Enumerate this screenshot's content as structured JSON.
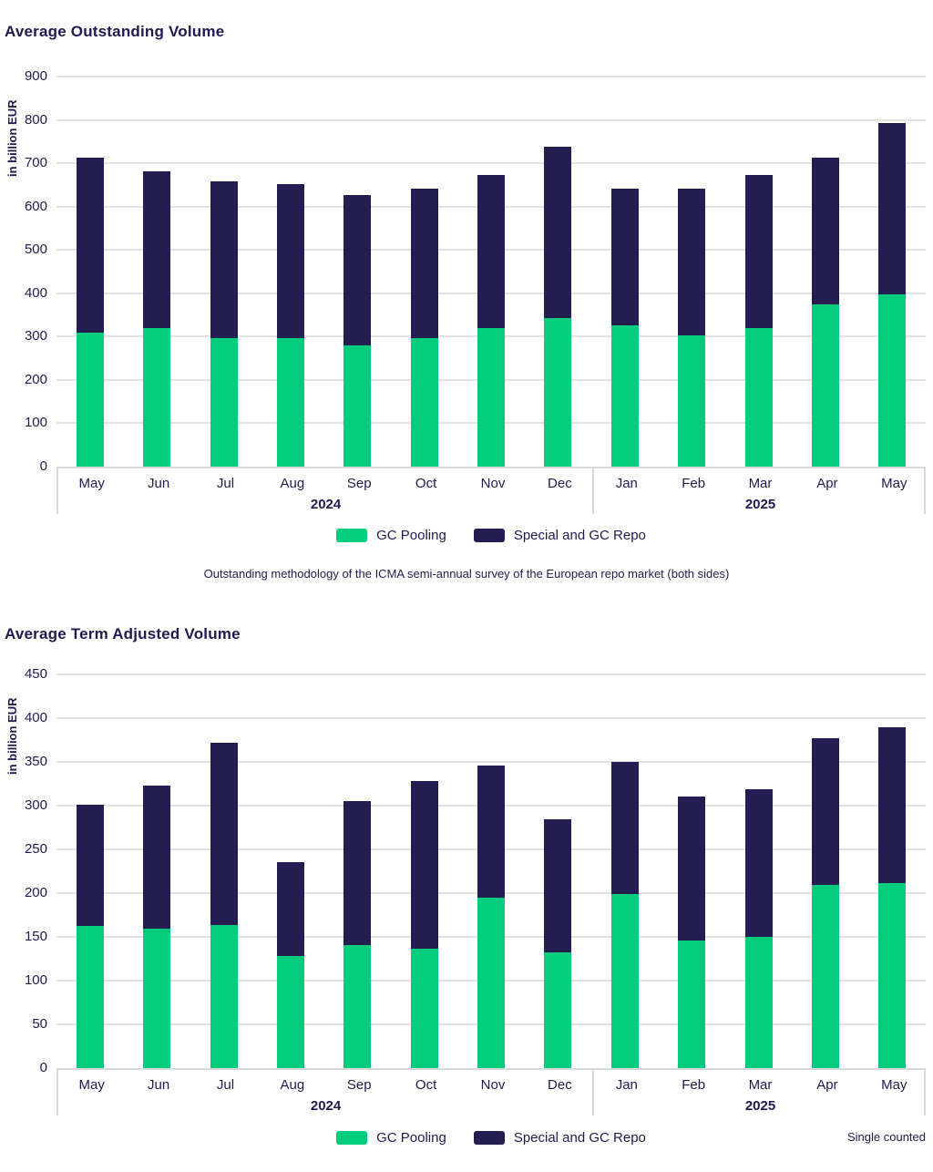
{
  "colors": {
    "gc_pooling": "#03cd7c",
    "special_gc_repo": "#231d52",
    "text": "#201a51",
    "gridline": "#e3e3e3",
    "axis_border": "#d9d9d9"
  },
  "chart_data": [
    {
      "type": "bar",
      "stacked": true,
      "title": "Average Outstanding Volume",
      "ylabel": "in billion EUR",
      "ylim": [
        0,
        900
      ],
      "ytick_step": 100,
      "grid": true,
      "legend_position": "bottom",
      "categories": [
        "May",
        "Jun",
        "Jul",
        "Aug",
        "Sep",
        "Oct",
        "Nov",
        "Dec",
        "Jan",
        "Feb",
        "Mar",
        "Apr",
        "May"
      ],
      "year_groups": [
        {
          "label": "2024",
          "span": 8
        },
        {
          "label": "2025",
          "span": 5
        }
      ],
      "series": [
        {
          "name": "GC Pooling",
          "color": "#03cd7c",
          "values": [
            310,
            320,
            296,
            296,
            280,
            296,
            319,
            342,
            327,
            303,
            319,
            374,
            398
          ]
        },
        {
          "name": "Special and GC Repo",
          "color": "#231d52",
          "values": [
            403,
            362,
            362,
            355,
            347,
            346,
            355,
            396,
            315,
            339,
            355,
            339,
            395
          ]
        }
      ],
      "totals": [
        713,
        682,
        658,
        651,
        627,
        642,
        674,
        738,
        642,
        642,
        674,
        713,
        793
      ],
      "caption": "Outstanding methodology of the ICMA semi-annual survey of the European repo market (both sides)"
    },
    {
      "type": "bar",
      "stacked": true,
      "title": "Average Term Adjusted Volume",
      "ylabel": "in billion EUR",
      "ylim": [
        0,
        450
      ],
      "ytick_step": 50,
      "grid": true,
      "legend_position": "bottom",
      "categories": [
        "May",
        "Jun",
        "Jul",
        "Aug",
        "Sep",
        "Oct",
        "Nov",
        "Dec",
        "Jan",
        "Feb",
        "Mar",
        "Apr",
        "May"
      ],
      "year_groups": [
        {
          "label": "2024",
          "span": 8
        },
        {
          "label": "2025",
          "span": 5
        }
      ],
      "series": [
        {
          "name": "GC Pooling",
          "color": "#03cd7c",
          "values": [
            163,
            159,
            164,
            128,
            141,
            137,
            195,
            132,
            199,
            146,
            150,
            209,
            212
          ]
        },
        {
          "name": "Special and GC Repo",
          "color": "#231d52",
          "values": [
            138,
            164,
            208,
            107,
            164,
            191,
            151,
            152,
            151,
            164,
            169,
            168,
            178
          ]
        }
      ],
      "totals": [
        301,
        323,
        372,
        235,
        305,
        328,
        346,
        284,
        350,
        310,
        319,
        377,
        390
      ],
      "footnote": "Single counted"
    }
  ]
}
